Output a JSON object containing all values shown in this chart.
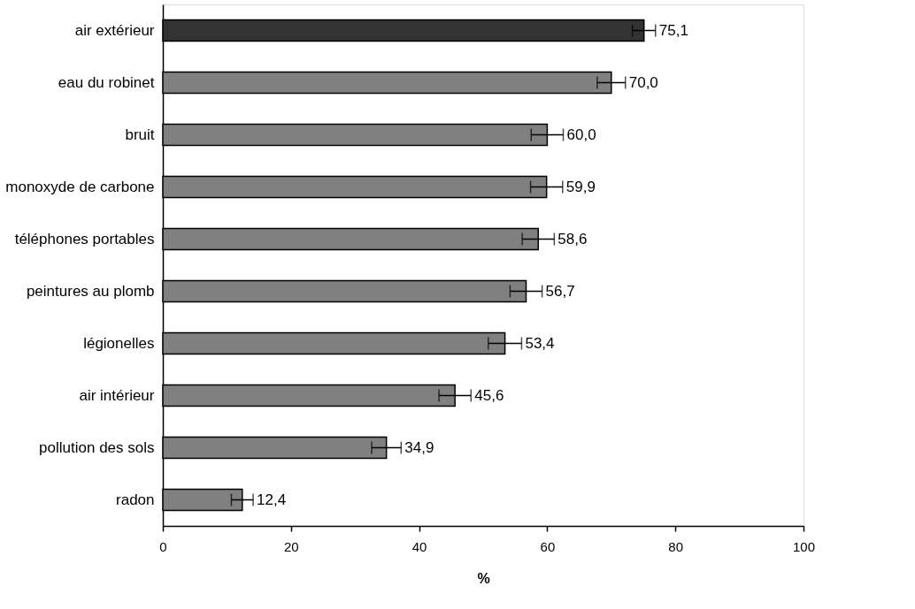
{
  "chart_data": {
    "type": "bar",
    "orientation": "horizontal",
    "xlabel": "%",
    "categories": [
      "air extérieur",
      "eau du robinet",
      "bruit",
      "monoxyde de carbone",
      "téléphones portables",
      "peintures au plomb",
      "légionelles",
      "air intérieur",
      "pollution des sols",
      "radon"
    ],
    "values": [
      75.1,
      70.0,
      60.0,
      59.9,
      58.6,
      56.7,
      53.4,
      45.6,
      34.9,
      12.4
    ],
    "colors": [
      "#333333",
      "#808080",
      "#808080",
      "#808080",
      "#808080",
      "#808080",
      "#808080",
      "#808080",
      "#808080",
      "#808080"
    ],
    "errors": [
      1.8,
      2.2,
      2.5,
      2.5,
      2.5,
      2.5,
      2.6,
      2.5,
      2.3,
      1.7
    ],
    "value_labels": [
      "75,1",
      "70,0",
      "60,0",
      "59,9",
      "58,6",
      "56,7",
      "53,4",
      "45,6",
      "34,9",
      "12,4"
    ],
    "xlim": [
      0,
      100
    ],
    "xticks": [
      0,
      20,
      40,
      60,
      80,
      100
    ],
    "grid": false
  }
}
